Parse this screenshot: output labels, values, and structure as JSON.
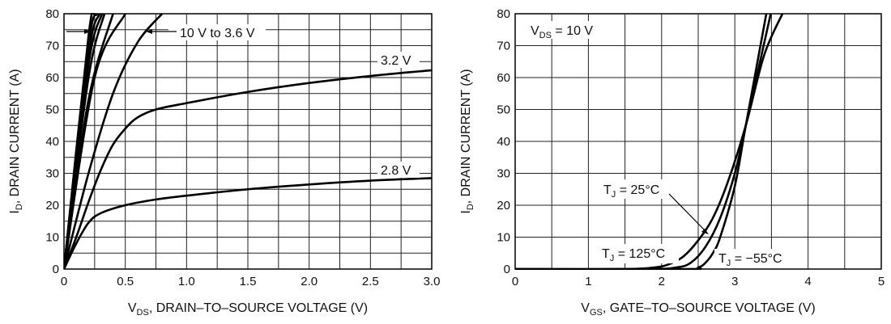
{
  "chart_data": [
    {
      "type": "line",
      "xlabel_main": "V",
      "xlabel_sub": "DS",
      "xlabel_rest": ", DRAIN–TO–SOURCE VOLTAGE (V)",
      "ylabel_main": "I",
      "ylabel_sub": "D",
      "ylabel_rest": ", DRAIN CURRENT (A)",
      "xlim": [
        0,
        3.0
      ],
      "ylim": [
        0,
        80
      ],
      "x_grid_step": 0.25,
      "y_grid_step": 5,
      "grid": true,
      "xticks": [
        "0",
        "0.5",
        "1.0",
        "1.5",
        "2.0",
        "2.5",
        "3.0"
      ],
      "yticks": [
        "0",
        "10",
        "20",
        "30",
        "40",
        "50",
        "60",
        "70",
        "80"
      ],
      "annotations": {
        "range": "10 V to 3.6 V",
        "v32": "3.2 V",
        "v28": "2.8 V"
      },
      "series": [
        {
          "name": "2.8 V",
          "points": [
            [
              0,
              0
            ],
            [
              0.1,
              8
            ],
            [
              0.2,
              14.5
            ],
            [
              0.3,
              17.5
            ],
            [
              0.5,
              20
            ],
            [
              0.75,
              21.8
            ],
            [
              1,
              23
            ],
            [
              1.5,
              25
            ],
            [
              2,
              26.5
            ],
            [
              2.5,
              27.7
            ],
            [
              3,
              28.5
            ]
          ]
        },
        {
          "name": "3.2 V",
          "points": [
            [
              0,
              0
            ],
            [
              0.1,
              10
            ],
            [
              0.2,
              21
            ],
            [
              0.3,
              31
            ],
            [
              0.4,
              39
            ],
            [
              0.5,
              44
            ],
            [
              0.6,
              47.5
            ],
            [
              0.75,
              50
            ],
            [
              1,
              52
            ],
            [
              1.5,
              55.5
            ],
            [
              2,
              58.3
            ],
            [
              2.5,
              60.5
            ],
            [
              3,
              62.3
            ]
          ]
        },
        {
          "name": "3.6 V",
          "points": [
            [
              0,
              0
            ],
            [
              0.2,
              30
            ],
            [
              0.4,
              55
            ],
            [
              0.6,
              71
            ],
            [
              0.8,
              80
            ]
          ]
        },
        {
          "points": [
            [
              0,
              0
            ],
            [
              0.25,
              60
            ],
            [
              0.5,
              80
            ]
          ]
        },
        {
          "points": [
            [
              0,
              0
            ],
            [
              0.2,
              53
            ],
            [
              0.4,
              80
            ]
          ]
        },
        {
          "points": [
            [
              0,
              0
            ],
            [
              0.2,
              60
            ],
            [
              0.33,
              80
            ]
          ]
        },
        {
          "points": [
            [
              0,
              0
            ],
            [
              0.2,
              64
            ],
            [
              0.31,
              80
            ]
          ]
        },
        {
          "points": [
            [
              0,
              0
            ],
            [
              0.2,
              67
            ],
            [
              0.29,
              80
            ]
          ]
        },
        {
          "points": [
            [
              0,
              0
            ],
            [
              0.2,
              70
            ],
            [
              0.27,
              80
            ]
          ]
        },
        {
          "points": [
            [
              0,
              0
            ],
            [
              0.2,
              73
            ],
            [
              0.25,
              80
            ]
          ]
        }
      ]
    },
    {
      "type": "line",
      "xlabel_main": "V",
      "xlabel_sub": "GS",
      "xlabel_rest": ", GATE–TO–SOURCE VOLTAGE (V)",
      "ylabel_main": "I",
      "ylabel_sub": "D",
      "ylabel_rest": ", DRAIN CURRENT (A)",
      "xlim": [
        0,
        5
      ],
      "ylim": [
        0,
        80
      ],
      "x_grid_step": 0.5,
      "y_grid_step": 10,
      "grid": true,
      "xticks": [
        "0",
        "1",
        "2",
        "3",
        "4",
        "5"
      ],
      "yticks": [
        "0",
        "10",
        "20",
        "30",
        "40",
        "50",
        "60",
        "70",
        "80"
      ],
      "annotations": {
        "vds_main": "V",
        "vds_sub": "DS",
        "vds_rest": " = 10 V",
        "t_main": "T",
        "t_sub": "J",
        "t25": " = 25°C",
        "t125": " = 125°C",
        "tm55": " = −55°C"
      },
      "series": [
        {
          "name": "TJ = 125°C",
          "points": [
            [
              0,
              0
            ],
            [
              1.5,
              0
            ],
            [
              1.9,
              0.5
            ],
            [
              2.1,
              1.5
            ],
            [
              2.3,
              4
            ],
            [
              2.5,
              9
            ],
            [
              2.7,
              16
            ],
            [
              2.9,
              27
            ],
            [
              3.15,
              45
            ],
            [
              3.4,
              67
            ],
            [
              3.65,
              80
            ]
          ]
        },
        {
          "name": "TJ = 25°C",
          "points": [
            [
              0,
              0
            ],
            [
              1.8,
              0
            ],
            [
              2.2,
              0.5
            ],
            [
              2.4,
              2
            ],
            [
              2.6,
              7
            ],
            [
              2.8,
              16
            ],
            [
              3.0,
              30
            ],
            [
              3.15,
              45
            ],
            [
              3.49,
              80
            ]
          ]
        },
        {
          "name": "TJ = −55°C",
          "points": [
            [
              0,
              0
            ],
            [
              2.3,
              0
            ],
            [
              2.5,
              0.5
            ],
            [
              2.6,
              2
            ],
            [
              2.7,
              5
            ],
            [
              2.8,
              10
            ],
            [
              3.0,
              26
            ],
            [
              3.15,
              45
            ],
            [
              3.43,
              80
            ]
          ]
        }
      ]
    }
  ]
}
